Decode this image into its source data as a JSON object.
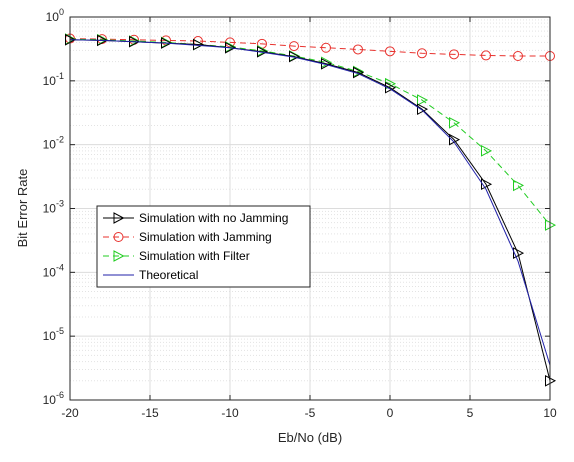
{
  "chart_data": {
    "type": "line",
    "xlabel": "Eb/No (dB)",
    "ylabel": "Bit Error Rate",
    "xlim": [
      -20,
      10
    ],
    "ylim": [
      1e-06,
      1
    ],
    "yscale": "log",
    "grid": true,
    "minor_grid": true,
    "legend_position": "center-left",
    "x_ticks": [
      -20,
      -15,
      -10,
      -5,
      0,
      5,
      10
    ],
    "x_tick_labels": [
      "-20",
      "-15",
      "-10",
      "-5",
      "0",
      "5",
      "10"
    ],
    "y_ticks": [
      {
        "value": 1,
        "base": "10",
        "exp": "0"
      },
      {
        "value": 0.1,
        "base": "10",
        "exp": "-1"
      },
      {
        "value": 0.01,
        "base": "10",
        "exp": "-2"
      },
      {
        "value": 0.001,
        "base": "10",
        "exp": "-3"
      },
      {
        "value": 0.0001,
        "base": "10",
        "exp": "-4"
      },
      {
        "value": 1e-05,
        "base": "10",
        "exp": "-5"
      },
      {
        "value": 1e-06,
        "base": "10",
        "exp": "-6"
      }
    ],
    "series": [
      {
        "name": "Simulation with no Jamming",
        "color": "#000000",
        "line_style": "solid",
        "marker": "triangle-right",
        "x": [
          -20,
          -18,
          -16,
          -14,
          -12,
          -10,
          -8,
          -6,
          -4,
          -2,
          0,
          2,
          4,
          6,
          8,
          10
        ],
        "y": [
          0.44,
          0.43,
          0.41,
          0.39,
          0.37,
          0.33,
          0.285,
          0.24,
          0.185,
          0.135,
          0.078,
          0.036,
          0.012,
          0.0024,
          0.0002,
          2e-06
        ]
      },
      {
        "name": "Simulation with Jamming",
        "color": "#e8322e",
        "line_style": "dashed",
        "marker": "circle",
        "x": [
          -20,
          -18,
          -16,
          -14,
          -12,
          -10,
          -8,
          -6,
          -4,
          -2,
          0,
          2,
          4,
          6,
          8,
          10
        ],
        "y": [
          0.46,
          0.45,
          0.44,
          0.43,
          0.42,
          0.4,
          0.38,
          0.35,
          0.33,
          0.31,
          0.29,
          0.27,
          0.26,
          0.25,
          0.245,
          0.245
        ]
      },
      {
        "name": "Simulation with Filter",
        "color": "#22cc22",
        "line_style": "dashed",
        "marker": "triangle-right",
        "x": [
          -20,
          -18,
          -16,
          -14,
          -12,
          -10,
          -8,
          -6,
          -4,
          -2,
          0,
          2,
          4,
          6,
          8,
          10
        ],
        "y": [
          0.45,
          0.44,
          0.42,
          0.4,
          0.37,
          0.34,
          0.295,
          0.245,
          0.195,
          0.14,
          0.09,
          0.05,
          0.022,
          0.008,
          0.0023,
          0.00055
        ]
      },
      {
        "name": "Theoretical",
        "color": "#2222aa",
        "line_style": "solid",
        "marker": "none",
        "x": [
          -20,
          -18,
          -16,
          -14,
          -12,
          -10,
          -8,
          -6,
          -4,
          -2,
          0,
          2,
          4,
          6,
          8,
          10
        ],
        "y": [
          0.44,
          0.43,
          0.41,
          0.39,
          0.36,
          0.33,
          0.28,
          0.235,
          0.18,
          0.13,
          0.075,
          0.035,
          0.011,
          0.002,
          0.00015,
          3.5e-06
        ]
      }
    ]
  }
}
